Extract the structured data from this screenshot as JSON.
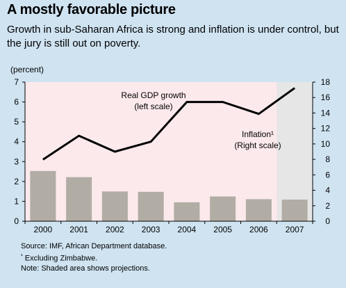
{
  "title": "A mostly favorable picture",
  "subtitle": "Growth in sub-Saharan Africa is strong and inflation is under control, but the jury is still out on poverty.",
  "y_unit_label": "(percent)",
  "notes": {
    "source": "Source: IMF, African Department database.",
    "footnote_mark": "¹",
    "footnote": "Excluding Zimbabwe.",
    "shading": "Note: Shaded area shows projections."
  },
  "colors": {
    "background": "#cfe3f1",
    "plot_background": "#fbe9ec",
    "projection_shade": "#e6e6e6",
    "bars": "#b1aca4",
    "line": "#000000"
  },
  "chart_data": {
    "type": "bar",
    "categories": [
      "2000",
      "2001",
      "2002",
      "2003",
      "2004",
      "2005",
      "2006",
      "2007"
    ],
    "series": [
      {
        "name": "Inflation¹ (Right scale)",
        "type": "bar",
        "axis": "right",
        "values": [
          6.5,
          5.7,
          3.85,
          3.8,
          2.45,
          3.2,
          2.85,
          2.8
        ]
      },
      {
        "name": "Real GDP growth (left scale)",
        "type": "line",
        "axis": "left",
        "values": [
          3.1,
          4.3,
          3.5,
          4.0,
          6.0,
          6.0,
          5.4,
          6.7
        ]
      }
    ],
    "series_labels": [
      {
        "lines": [
          "Real GDP growth",
          "(left scale)"
        ]
      },
      {
        "lines": [
          "Inflation¹",
          "(Right scale)"
        ]
      }
    ],
    "left_axis": {
      "min": 0,
      "max": 7,
      "ticks": [
        0,
        1,
        2,
        3,
        4,
        5,
        6,
        7
      ]
    },
    "right_axis": {
      "min": 0,
      "max": 18,
      "ticks": [
        0,
        2,
        4,
        6,
        8,
        10,
        12,
        14,
        16,
        18
      ]
    },
    "projection_categories": [
      "2007"
    ],
    "grid": false,
    "legend": "inline labels"
  }
}
